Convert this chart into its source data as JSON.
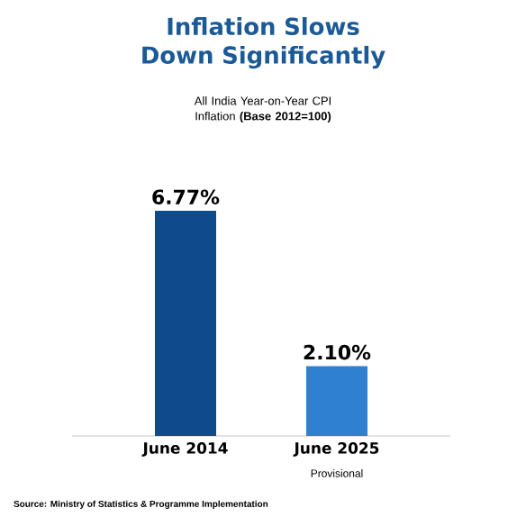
{
  "chart_data": {
    "type": "bar",
    "title": "Inflation Slows Down Significantly",
    "subtitle": "All India Year-on-Year CPI Inflation **(Base 2012=100)**",
    "categories": [
      "June 2014",
      "June 2025"
    ],
    "values": [
      6.77,
      2.1
    ],
    "colors": [
      "#0e4a8c",
      "#2f80d0"
    ],
    "value_labels": [
      "6.77%",
      "2.10%"
    ],
    "annotations": [
      "Provisional",
      "Source: Ministry of Statistics & Programme Implementation"
    ]
  }
}
